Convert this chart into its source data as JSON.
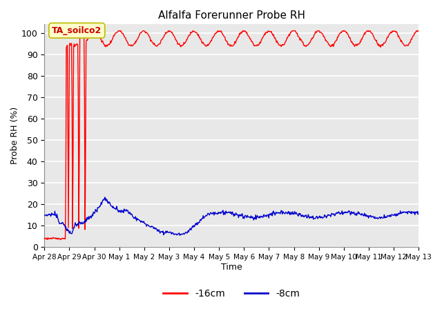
{
  "title": "Alfalfa Forerunner Probe RH",
  "xlabel": "Time",
  "ylabel": "Probe RH (%)",
  "ylim": [
    0,
    104
  ],
  "yticks": [
    0,
    10,
    20,
    30,
    40,
    50,
    60,
    70,
    80,
    90,
    100
  ],
  "axes_facecolor": "#e8e8e8",
  "grid_color": "#ffffff",
  "line_color_red": "#ff0000",
  "line_color_blue": "#0000cc",
  "annotation_text": "TA_soilco2",
  "annotation_facecolor": "#ffffcc",
  "annotation_edgecolor": "#bbbb00",
  "legend_labels": [
    "-16cm",
    "-8cm"
  ],
  "legend_colors": [
    "#ff0000",
    "#0000cc"
  ],
  "total_days": 15,
  "xtick_labels": [
    "Apr 28",
    "Apr 29",
    "Apr 30",
    "May 1",
    "May 2",
    "May 3",
    "May 4",
    "May 5",
    "May 6",
    "May 7",
    "May 8",
    "May 9",
    "May 10",
    "May 11",
    "May 12",
    "May 13"
  ]
}
